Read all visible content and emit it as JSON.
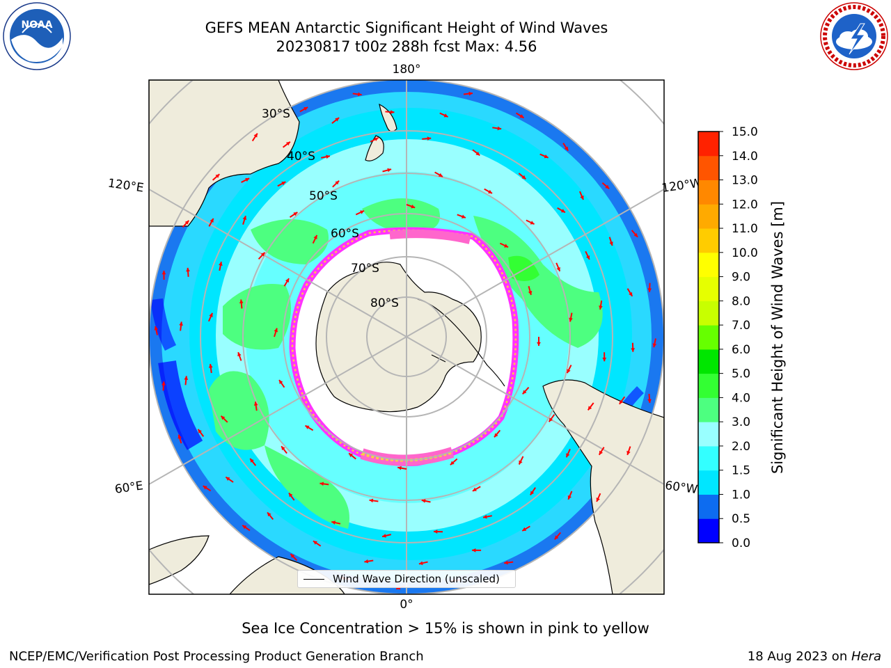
{
  "header": {
    "title_line1": "GEFS MEAN Antarctic Significant Height of Wind Waves",
    "title_line2": "20230817 t00z 288h fcst   Max: 4.56",
    "left_logo": "noaa-logo",
    "left_logo_text": "NOAA",
    "right_logo": "national-weather-service-logo"
  },
  "map": {
    "projection": "south-polar-stereographic",
    "longitude_labels": [
      "180°",
      "120°E",
      "120°W",
      "60°E",
      "60°W",
      "0°"
    ],
    "latitude_labels": [
      "30°S",
      "40°S",
      "50°S",
      "60°S",
      "70°S",
      "80°S"
    ],
    "land_color": "#efecdc",
    "ice_zone_color": "#ffffff",
    "ice_edge_colors": [
      "#ff66cc",
      "#ff33ff",
      "#ffcc44",
      "#ffee66"
    ],
    "wave_arrow_color": "#ff0000",
    "legend_label": "Wind Wave Direction (unscaled)"
  },
  "colorbar": {
    "label": "Significant Height of Wind Waves [m]",
    "ticks": [
      "0.0",
      "0.5",
      "1.0",
      "1.5",
      "2.0",
      "3.0",
      "4.0",
      "5.0",
      "6.0",
      "7.0",
      "8.0",
      "9.0",
      "10.0",
      "11.0",
      "12.0",
      "13.0",
      "14.0",
      "15.0"
    ],
    "colors": [
      "#0000ff",
      "#0d6cf0",
      "#00e6ff",
      "#33ffff",
      "#99ffff",
      "#4dff80",
      "#33ff33",
      "#00e600",
      "#66ff00",
      "#c8ff00",
      "#e6ff00",
      "#ffff00",
      "#ffcc00",
      "#ffaa00",
      "#ff8800",
      "#ff5500",
      "#ff2200"
    ]
  },
  "captions": {
    "sea_ice_note": "Sea Ice Concentration > 15% is shown in pink to yellow",
    "footer_left": "NCEP/EMC/Verification Post Processing Product Generation Branch",
    "footer_right_date": "18 Aug 2023 on ",
    "footer_right_system": "Hera"
  }
}
